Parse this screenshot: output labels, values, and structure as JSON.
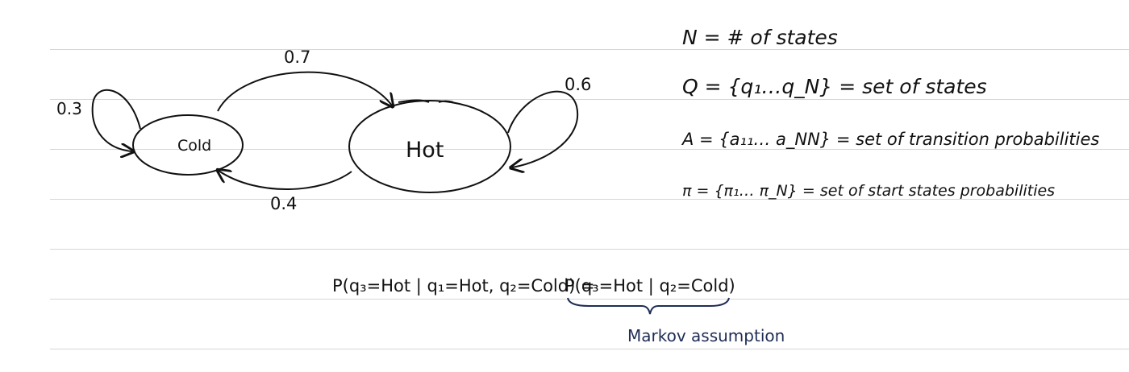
{
  "diagram": {
    "states": [
      {
        "id": "cold",
        "label": "Cold"
      },
      {
        "id": "hot",
        "label": "Hot"
      }
    ],
    "transitions": [
      {
        "from": "Cold",
        "to": "Cold",
        "label": "0.3"
      },
      {
        "from": "Cold",
        "to": "Hot",
        "label": "0.7"
      },
      {
        "from": "Hot",
        "to": "Hot",
        "label": "0.6"
      },
      {
        "from": "Hot",
        "to": "Cold",
        "label": "0.4"
      }
    ]
  },
  "definitions": [
    "N = # of states",
    "Q = {q₁…q_N} = set of states",
    "A = {a₁₁… a_NN} = set of transition probabilities",
    "π = {π₁… π_N} = set of start states probabilities"
  ],
  "formula": {
    "left": "P(q₃=Hot | q₁=Hot, q₂=Cold) =",
    "right": "P(q₃=Hot | q₂=Cold)"
  },
  "annotation": "Markov assumption",
  "colors": {
    "ink": "#111111",
    "annotation": "#1f2d55",
    "ruled_line": "#d6d6d6"
  }
}
